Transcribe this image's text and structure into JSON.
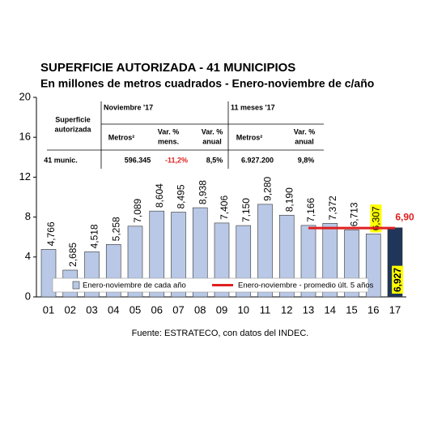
{
  "chart_data": {
    "type": "bar",
    "title": "SUPERFICIE AUTORIZADA - 41 MUNICIPIOS",
    "subtitle": "En millones de metros cuadrados - Enero-noviembre de c/año",
    "source": "Fuente: ESTRATECO, con datos del INDEC.",
    "categories": [
      "01",
      "02",
      "03",
      "04",
      "05",
      "06",
      "07",
      "08",
      "09",
      "10",
      "11",
      "12",
      "13",
      "14",
      "15",
      "16",
      "17"
    ],
    "ylim": [
      0,
      20
    ],
    "yticks": [
      0,
      4,
      8,
      12,
      16,
      20
    ],
    "series": [
      {
        "name": "Enero-noviembre de cada año",
        "color": "#b8c8e6",
        "values": [
          4.766,
          2.685,
          4.518,
          5.258,
          7.089,
          8.604,
          8.495,
          8.938,
          7.406,
          7.15,
          9.28,
          8.19,
          7.166,
          7.372,
          6.713,
          6.307,
          6.927
        ],
        "value_labels": [
          "4,766",
          "2,685",
          "4,518",
          "5,258",
          "7,089",
          "8,604",
          "8,495",
          "8,938",
          "7,406",
          "7,150",
          "9,280",
          "8,190",
          "7,166",
          "7,372",
          "6,713",
          "6,307",
          "6,927"
        ],
        "bar_colors": [
          "#b8c8e6",
          "#b8c8e6",
          "#b8c8e6",
          "#b8c8e6",
          "#b8c8e6",
          "#b8c8e6",
          "#b8c8e6",
          "#b8c8e6",
          "#b8c8e6",
          "#b8c8e6",
          "#b8c8e6",
          "#b8c8e6",
          "#b8c8e6",
          "#b8c8e6",
          "#b8c8e6",
          "#b8c8e6",
          "#1f3559"
        ],
        "label_backgrounds": [
          null,
          null,
          null,
          null,
          null,
          null,
          null,
          null,
          null,
          null,
          null,
          null,
          null,
          null,
          null,
          "#ffff00",
          "#ffff00"
        ],
        "label_inside": [
          false,
          false,
          false,
          false,
          false,
          false,
          false,
          false,
          false,
          false,
          false,
          false,
          false,
          false,
          false,
          false,
          true
        ]
      },
      {
        "name": "Enero-noviembre - promedio últ. 5 años",
        "color": "#e02020",
        "type": "line",
        "values": [
          null,
          null,
          null,
          null,
          null,
          null,
          null,
          null,
          null,
          null,
          null,
          null,
          6.9,
          6.9,
          6.9,
          6.9,
          6.9
        ],
        "end_label": "6,90"
      }
    ],
    "table": {
      "row_header": [
        "Superficie",
        "autorizada"
      ],
      "groups": [
        "Noviembre '17",
        "11 meses '17"
      ],
      "columns": [
        [
          "Metros²"
        ],
        [
          "Var. %",
          "mens."
        ],
        [
          "Var. %",
          "anual"
        ],
        [
          "Metros²"
        ],
        [
          "Var. %",
          "anual"
        ]
      ],
      "rows": [
        [
          "41 munic.",
          "596.345",
          "-11,2%",
          "8,5%",
          "6.927.200",
          "9,8%"
        ]
      ]
    }
  }
}
